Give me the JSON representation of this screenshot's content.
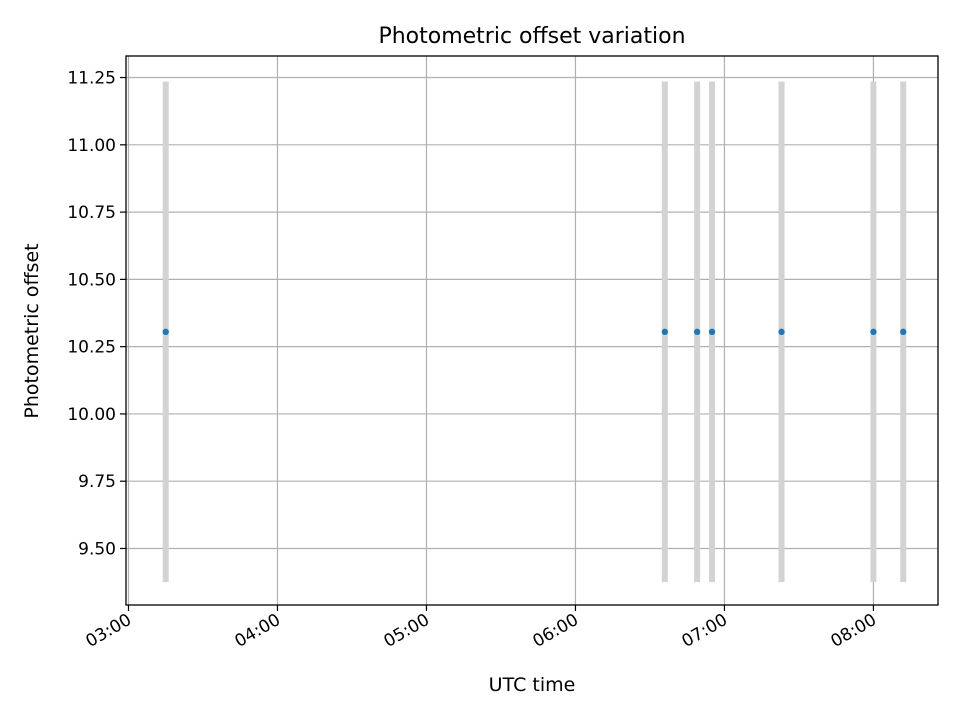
{
  "chart_data": {
    "type": "scatter",
    "title": "Photometric offset variation",
    "xlabel": "UTC time",
    "ylabel": "Photometric offset",
    "x_type": "time",
    "xlim": [
      "02:59",
      "08:26"
    ],
    "ylim": [
      9.29,
      11.33
    ],
    "x_ticks": [
      "03:00",
      "04:00",
      "05:00",
      "06:00",
      "07:00",
      "08:00"
    ],
    "y_ticks": [
      9.5,
      9.75,
      10.0,
      10.25,
      10.5,
      10.75,
      11.0,
      11.25
    ],
    "y_tick_labels": [
      "9.50",
      "9.75",
      "10.00",
      "10.25",
      "10.50",
      "10.75",
      "11.00",
      "11.25"
    ],
    "grid": true,
    "series": [
      {
        "marker_color": "#1f77b4",
        "errorbar_color": "#d3d3d3",
        "points": [
          {
            "x": "03:15",
            "y": 10.305,
            "yerr": 0.93
          },
          {
            "x": "06:36",
            "y": 10.305,
            "yerr": 0.93
          },
          {
            "x": "06:49",
            "y": 10.305,
            "yerr": 0.93
          },
          {
            "x": "06:55",
            "y": 10.305,
            "yerr": 0.93
          },
          {
            "x": "07:23",
            "y": 10.305,
            "yerr": 0.93
          },
          {
            "x": "08:00",
            "y": 10.305,
            "yerr": 0.93
          },
          {
            "x": "08:12",
            "y": 10.305,
            "yerr": 0.93
          }
        ]
      }
    ]
  }
}
